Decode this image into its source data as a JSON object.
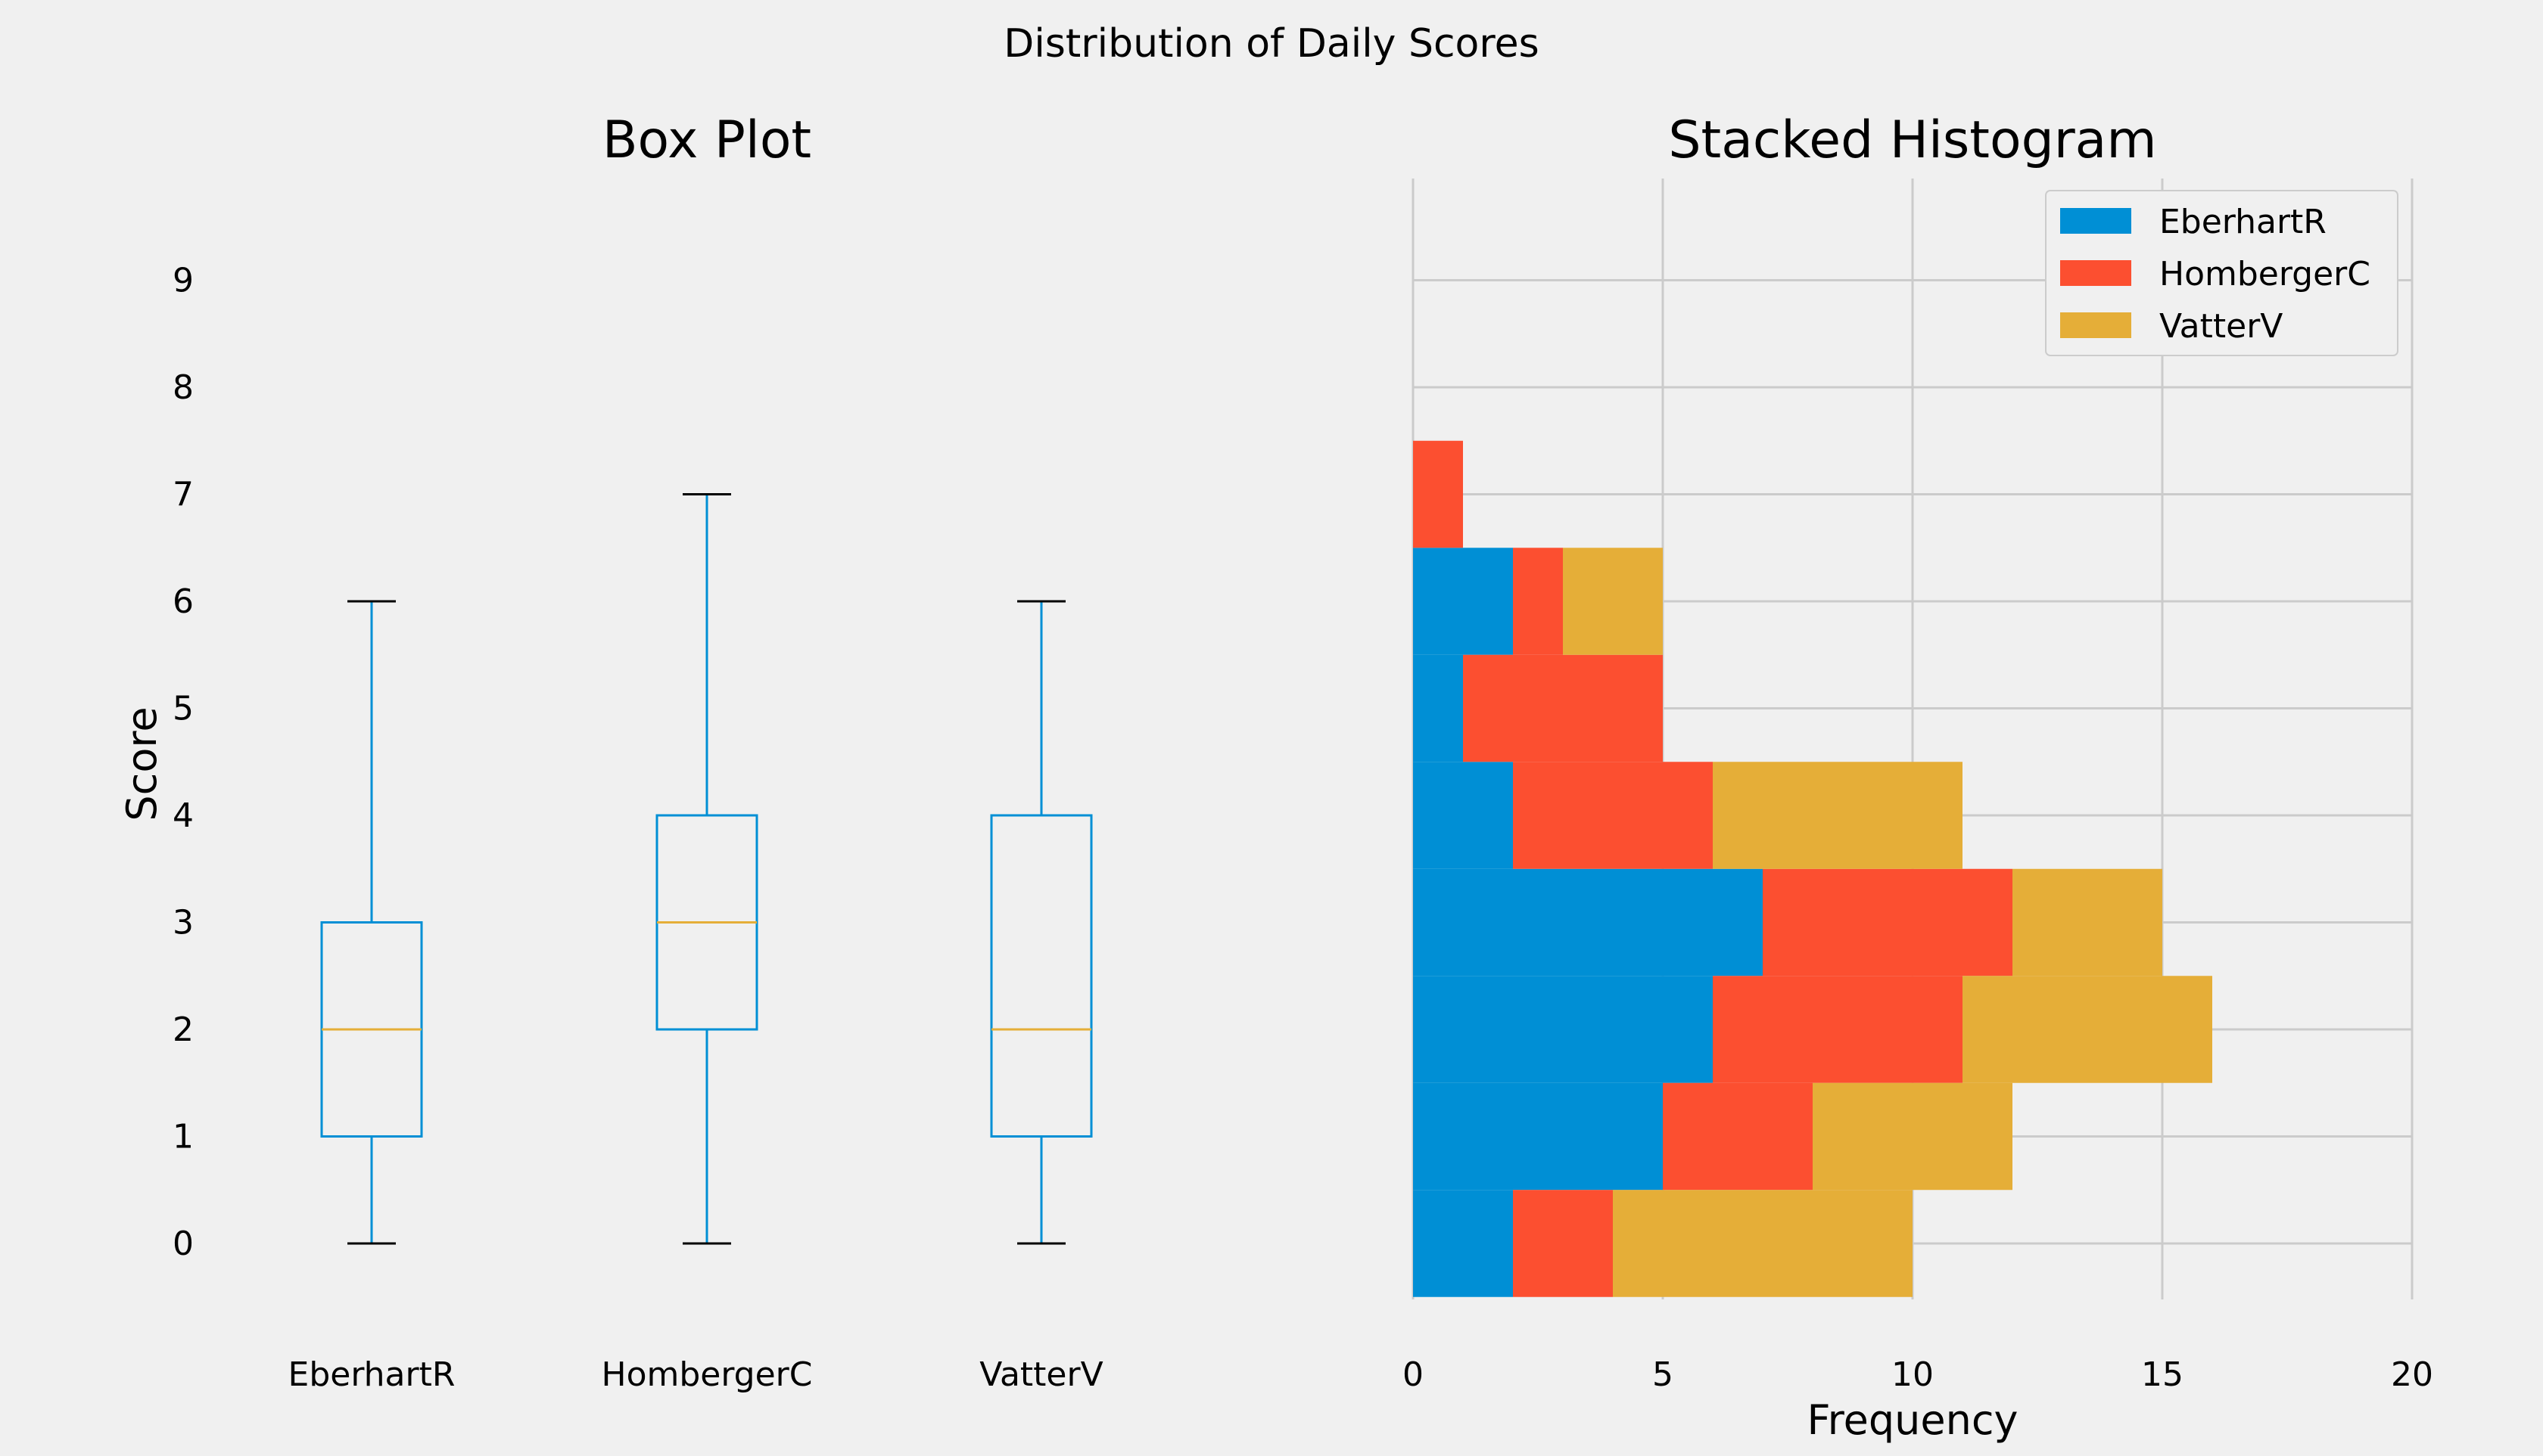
{
  "title": "Distribution of Daily Scores",
  "chart_data": [
    {
      "type": "box",
      "title": "Box Plot",
      "xlabel": "",
      "ylabel": "Score",
      "categories": [
        "EberhartR",
        "HombergerC",
        "VatterV"
      ],
      "boxes": [
        {
          "name": "EberhartR",
          "whisker_low": 0,
          "q1": 1,
          "median": 2,
          "q3": 3,
          "whisker_high": 6
        },
        {
          "name": "HombergerC",
          "whisker_low": 0,
          "q1": 2,
          "median": 3,
          "q3": 4,
          "whisker_high": 7
        },
        {
          "name": "VatterV",
          "whisker_low": 0,
          "q1": 1,
          "median": 2,
          "q3": 4,
          "whisker_high": 6
        }
      ],
      "y_ticks": [
        0,
        1,
        2,
        3,
        4,
        5,
        6,
        7,
        8,
        9
      ],
      "ylim": [
        -0.5,
        9.5
      ],
      "colors": {
        "box": "#008fd5",
        "median": "#e5ae38",
        "cap": "#000000"
      }
    },
    {
      "type": "histogram",
      "orientation": "horizontal",
      "stacked": true,
      "title": "Stacked Histogram",
      "xlabel": "Frequency",
      "ylabel": "",
      "bin_edges": [
        -0.5,
        0.5,
        1.5,
        2.5,
        3.5,
        4.5,
        5.5,
        6.5,
        7.5
      ],
      "series": [
        {
          "name": "EberhartR",
          "color": "#008fd5",
          "values": [
            2,
            5,
            6,
            7,
            2,
            1,
            2,
            0
          ]
        },
        {
          "name": "HombergerC",
          "color": "#fc4f30",
          "values": [
            2,
            3,
            5,
            5,
            4,
            4,
            1,
            1
          ]
        },
        {
          "name": "VatterV",
          "color": "#e5ae38",
          "values": [
            6,
            4,
            5,
            3,
            5,
            0,
            2,
            0
          ]
        }
      ],
      "x_ticks": [
        0,
        5,
        10,
        15,
        20
      ],
      "xlim": [
        0,
        20
      ],
      "grid": true,
      "legend_position": "top-right"
    }
  ]
}
